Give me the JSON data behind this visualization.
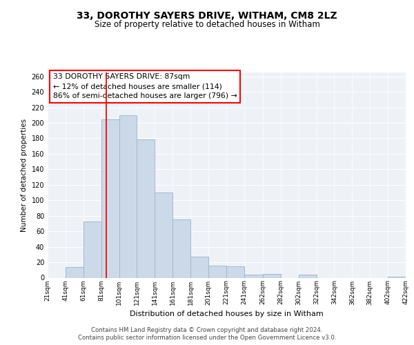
{
  "title": "33, DOROTHY SAYERS DRIVE, WITHAM, CM8 2LZ",
  "subtitle": "Size of property relative to detached houses in Witham",
  "xlabel": "Distribution of detached houses by size in Witham",
  "ylabel": "Number of detached properties",
  "footer_line1": "Contains HM Land Registry data © Crown copyright and database right 2024.",
  "footer_line2": "Contains public sector information licensed under the Open Government Licence v3.0.",
  "bar_color": "#ccd9e8",
  "bar_edge_color": "#a0b8d0",
  "red_line_x": 87,
  "annotation_line1": "33 DOROTHY SAYERS DRIVE: 87sqm",
  "annotation_line2": "← 12% of detached houses are smaller (114)",
  "annotation_line3": "86% of semi-detached houses are larger (796) →",
  "bins": [
    21,
    41,
    61,
    81,
    101,
    121,
    141,
    161,
    181,
    201,
    221,
    241,
    262,
    282,
    302,
    322,
    342,
    362,
    382,
    402,
    422
  ],
  "counts": [
    0,
    14,
    73,
    204,
    210,
    179,
    110,
    75,
    27,
    16,
    15,
    4,
    5,
    0,
    4,
    0,
    0,
    0,
    0,
    1
  ],
  "ylim": [
    0,
    265
  ],
  "yticks": [
    0,
    20,
    40,
    60,
    80,
    100,
    120,
    140,
    160,
    180,
    200,
    220,
    240,
    260
  ],
  "background_color": "#eef2f7",
  "grid_color": "#ffffff"
}
